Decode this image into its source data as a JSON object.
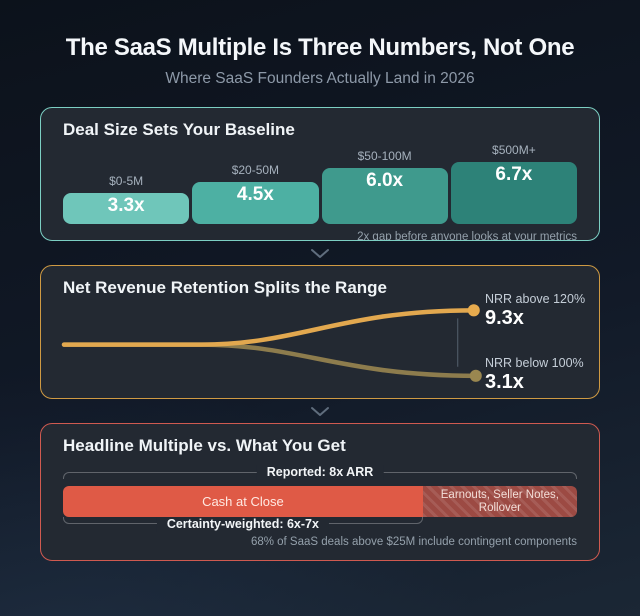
{
  "header": {
    "title": "The SaaS Multiple Is Three Numbers, Not One",
    "subtitle": "Where SaaS Founders Actually Land in 2026"
  },
  "panel1": {
    "heading": "Deal Size Sets Your Baseline",
    "bars": [
      {
        "label": "$0-5M",
        "value": "3.3x"
      },
      {
        "label": "$20-50M",
        "value": "4.5x"
      },
      {
        "label": "$50-100M",
        "value": "6.0x"
      },
      {
        "label": "$500M+",
        "value": "6.7x"
      }
    ],
    "note": "2x gap before anyone looks at your metrics"
  },
  "panel2": {
    "heading": "Net Revenue Retention Splits the Range",
    "high_label": "NRR above 120%",
    "high_value": "9.3x",
    "low_label": "NRR below 100%",
    "low_value": "3.1x"
  },
  "panel3": {
    "heading": "Headline Multiple vs. What You Get",
    "reported_label": "Reported: 8x ARR",
    "cash_label": "Cash at Close",
    "contingent_label": "Earnouts, Seller Notes, Rollover",
    "weighted_label": "Certainty-weighted: 6x-7x",
    "note": "68% of SaaS deals above $25M include contingent components"
  },
  "colors": {
    "panel_teal_border": "#7ccfc3",
    "panel_gold_border": "#cf9a43",
    "panel_red_border": "#d05a50",
    "nrr_line_high": "#e2a84f",
    "nrr_line_low": "#8d7c4d",
    "cash_segment": "#df5a46",
    "contingent_segment": "#9c4a43"
  },
  "chart_data": [
    {
      "type": "bar",
      "title": "Deal Size Sets Your Baseline",
      "categories": [
        "$0-5M",
        "$20-50M",
        "$50-100M",
        "$500M+"
      ],
      "values": [
        3.3,
        4.5,
        6.0,
        6.7
      ],
      "unit": "x ARR multiple",
      "ylim": [
        0,
        7
      ],
      "colors": [
        "#6fc6ba",
        "#4db0a3",
        "#3f9a8d",
        "#2d8278"
      ],
      "annotation": "2x gap before anyone looks at your metrics"
    },
    {
      "type": "line",
      "title": "Net Revenue Retention Splits the Range",
      "description": "One baseline diverging into two outcomes",
      "series": [
        {
          "name": "NRR above 120%",
          "end_value": 9.3,
          "color": "#e2a84f"
        },
        {
          "name": "NRR below 100%",
          "end_value": 3.1,
          "color": "#8d7c4d"
        }
      ],
      "unit": "x ARR multiple"
    },
    {
      "type": "bar",
      "subtype": "stacked-horizontal",
      "title": "Headline Multiple vs. What You Get",
      "total_label": "Reported: 8x ARR",
      "total_value": 8,
      "segments": [
        {
          "label": "Cash at Close",
          "fraction": 0.7,
          "color": "#df5a46"
        },
        {
          "label": "Earnouts, Seller Notes, Rollover",
          "fraction": 0.3,
          "color": "#9c4a43",
          "pattern": "diagonal-hatch"
        }
      ],
      "weighted_label": "Certainty-weighted: 6x-7x",
      "weighted_range": [
        6,
        7
      ],
      "annotation": "68% of SaaS deals above $25M include contingent components"
    }
  ]
}
